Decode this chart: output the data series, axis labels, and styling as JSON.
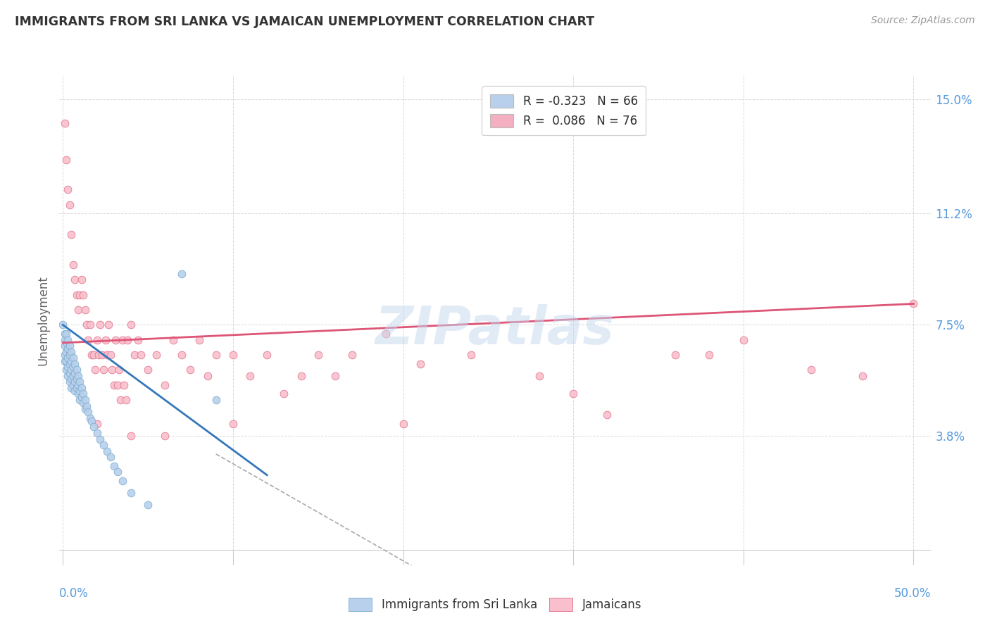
{
  "title": "IMMIGRANTS FROM SRI LANKA VS JAMAICAN UNEMPLOYMENT CORRELATION CHART",
  "source": "Source: ZipAtlas.com",
  "ylabel": "Unemployment",
  "yticks": [
    0.0,
    0.038,
    0.075,
    0.112,
    0.15
  ],
  "ytick_labels": [
    "",
    "3.8%",
    "7.5%",
    "11.2%",
    "15.0%"
  ],
  "xtick_positions": [
    0.0,
    0.1,
    0.2,
    0.3,
    0.4,
    0.5
  ],
  "xlim": [
    -0.002,
    0.51
  ],
  "ylim": [
    -0.005,
    0.158
  ],
  "legend_entries": [
    {
      "label": "R = -0.323   N = 66",
      "color": "#b8d0eb"
    },
    {
      "label": "R =  0.086   N = 76",
      "color": "#f4afc0"
    }
  ],
  "scatter_sri_lanka": {
    "color": "#b8d0eb",
    "edge_color": "#7aabcf",
    "x": [
      0.0,
      0.001,
      0.001,
      0.001,
      0.001,
      0.001,
      0.002,
      0.002,
      0.002,
      0.002,
      0.002,
      0.003,
      0.003,
      0.003,
      0.003,
      0.003,
      0.004,
      0.004,
      0.004,
      0.004,
      0.004,
      0.005,
      0.005,
      0.005,
      0.005,
      0.005,
      0.006,
      0.006,
      0.006,
      0.006,
      0.007,
      0.007,
      0.007,
      0.007,
      0.008,
      0.008,
      0.008,
      0.009,
      0.009,
      0.009,
      0.01,
      0.01,
      0.01,
      0.011,
      0.011,
      0.012,
      0.012,
      0.013,
      0.013,
      0.014,
      0.015,
      0.016,
      0.017,
      0.018,
      0.02,
      0.022,
      0.024,
      0.026,
      0.028,
      0.03,
      0.032,
      0.035,
      0.04,
      0.05,
      0.07,
      0.09
    ],
    "y": [
      0.075,
      0.072,
      0.07,
      0.068,
      0.065,
      0.063,
      0.072,
      0.069,
      0.066,
      0.063,
      0.06,
      0.07,
      0.067,
      0.064,
      0.061,
      0.058,
      0.068,
      0.065,
      0.062,
      0.059,
      0.056,
      0.066,
      0.063,
      0.06,
      0.057,
      0.054,
      0.064,
      0.061,
      0.058,
      0.055,
      0.062,
      0.059,
      0.056,
      0.053,
      0.06,
      0.057,
      0.054,
      0.058,
      0.055,
      0.052,
      0.056,
      0.053,
      0.05,
      0.054,
      0.051,
      0.052,
      0.049,
      0.05,
      0.047,
      0.048,
      0.046,
      0.044,
      0.043,
      0.041,
      0.039,
      0.037,
      0.035,
      0.033,
      0.031,
      0.028,
      0.026,
      0.023,
      0.019,
      0.015,
      0.092,
      0.05
    ]
  },
  "scatter_jamaicans": {
    "color": "#f9bfcc",
    "edge_color": "#e0708a",
    "x": [
      0.001,
      0.002,
      0.003,
      0.004,
      0.005,
      0.006,
      0.007,
      0.008,
      0.009,
      0.01,
      0.011,
      0.012,
      0.013,
      0.014,
      0.015,
      0.016,
      0.017,
      0.018,
      0.019,
      0.02,
      0.021,
      0.022,
      0.023,
      0.024,
      0.025,
      0.026,
      0.027,
      0.028,
      0.029,
      0.03,
      0.031,
      0.032,
      0.033,
      0.034,
      0.035,
      0.036,
      0.037,
      0.038,
      0.04,
      0.042,
      0.044,
      0.046,
      0.05,
      0.055,
      0.06,
      0.065,
      0.07,
      0.075,
      0.08,
      0.085,
      0.09,
      0.1,
      0.11,
      0.12,
      0.13,
      0.14,
      0.15,
      0.16,
      0.17,
      0.19,
      0.21,
      0.24,
      0.28,
      0.32,
      0.36,
      0.4,
      0.44,
      0.47,
      0.5,
      0.38,
      0.2,
      0.3,
      0.1,
      0.06,
      0.04,
      0.02
    ],
    "y": [
      0.142,
      0.13,
      0.12,
      0.115,
      0.105,
      0.095,
      0.09,
      0.085,
      0.08,
      0.085,
      0.09,
      0.085,
      0.08,
      0.075,
      0.07,
      0.075,
      0.065,
      0.065,
      0.06,
      0.07,
      0.065,
      0.075,
      0.065,
      0.06,
      0.07,
      0.065,
      0.075,
      0.065,
      0.06,
      0.055,
      0.07,
      0.055,
      0.06,
      0.05,
      0.07,
      0.055,
      0.05,
      0.07,
      0.075,
      0.065,
      0.07,
      0.065,
      0.06,
      0.065,
      0.055,
      0.07,
      0.065,
      0.06,
      0.07,
      0.058,
      0.065,
      0.065,
      0.058,
      0.065,
      0.052,
      0.058,
      0.065,
      0.058,
      0.065,
      0.072,
      0.062,
      0.065,
      0.058,
      0.045,
      0.065,
      0.07,
      0.06,
      0.058,
      0.082,
      0.065,
      0.042,
      0.052,
      0.042,
      0.038,
      0.038,
      0.042
    ]
  },
  "trend_sri_lanka": {
    "color": "#3377bb",
    "x_start": 0.0,
    "x_end": 0.12,
    "y_start": 0.075,
    "y_end": 0.025
  },
  "trend_sri_lanka_dashed": {
    "color": "#aaaaaa",
    "x_start": 0.09,
    "x_end": 0.22,
    "y_start": 0.032,
    "y_end": -0.01
  },
  "trend_jamaicans": {
    "color": "#dd5577",
    "x_start": 0.0,
    "x_end": 0.5,
    "y_start": 0.069,
    "y_end": 0.082
  },
  "watermark": "ZIPatlas",
  "background_color": "#ffffff",
  "grid_color": "#d8d8d8",
  "title_color": "#333333",
  "axis_tick_color": "#5599dd",
  "marker_size": 60
}
